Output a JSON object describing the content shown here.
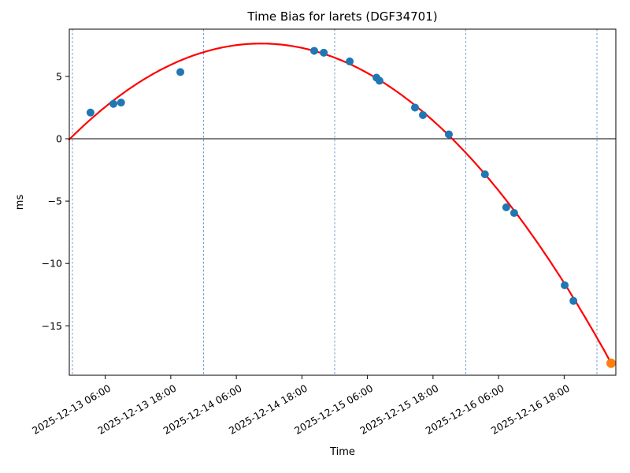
{
  "chart_data": {
    "type": "scatter",
    "title": "Time Bias for larets (DGF34701)",
    "xlabel": "Time",
    "ylabel": "ms",
    "x_unit": "hours since 2025-12-13 00:00",
    "xlim_hours": [
      -0.58,
      99.46
    ],
    "ylim": [
      -18.96,
      8.79
    ],
    "grid": "vertical dashed lines at each midnight",
    "x_tick_hours": [
      6,
      18,
      30,
      42,
      54,
      66,
      78,
      90
    ],
    "x_tick_labels": [
      "2025-12-13 06:00",
      "2025-12-13 18:00",
      "2025-12-14 06:00",
      "2025-12-14 18:00",
      "2025-12-15 06:00",
      "2025-12-15 18:00",
      "2025-12-16 06:00",
      "2025-12-16 18:00"
    ],
    "day_gridlines_hours": [
      0,
      24,
      48,
      72,
      96
    ],
    "day_gridline_dates": [
      "2025-12-13 00:00",
      "2025-12-14 00:00",
      "2025-12-15 00:00",
      "2025-12-16 00:00",
      "2025-12-17 00:00"
    ],
    "y_ticks": [
      5,
      0,
      -5,
      -10,
      -15
    ],
    "y_tick_labels": [
      "5",
      "0",
      "−5",
      "−10",
      "−15"
    ],
    "series": [
      {
        "name": "observed-time-bias",
        "color": "#1f77b4",
        "marker_radius": 5,
        "points": [
          {
            "t": 3.3,
            "ms": 2.1
          },
          {
            "t": 7.5,
            "ms": 2.8
          },
          {
            "t": 8.9,
            "ms": 2.9
          },
          {
            "t": 19.75,
            "ms": 5.35
          },
          {
            "t": 44.25,
            "ms": 7.05
          },
          {
            "t": 46.0,
            "ms": 6.9
          },
          {
            "t": 50.75,
            "ms": 6.2
          },
          {
            "t": 55.65,
            "ms": 4.9
          },
          {
            "t": 56.2,
            "ms": 4.65
          },
          {
            "t": 62.7,
            "ms": 2.5
          },
          {
            "t": 64.15,
            "ms": 1.9
          },
          {
            "t": 68.9,
            "ms": 0.35
          },
          {
            "t": 75.5,
            "ms": -2.85
          },
          {
            "t": 79.4,
            "ms": -5.5
          },
          {
            "t": 80.85,
            "ms": -5.95
          },
          {
            "t": 90.1,
            "ms": -11.75
          },
          {
            "t": 91.7,
            "ms": -13.0
          }
        ]
      },
      {
        "name": "latest-observation",
        "color": "#ff7f0e",
        "marker_radius": 6,
        "points": [
          {
            "t": 98.6,
            "ms": -18.0
          }
        ]
      }
    ],
    "fit_curve": {
      "name": "quadratic-fit",
      "color": "#ff0000",
      "width": 2.2,
      "c0": 0.192,
      "c1": 0.431,
      "c2": -0.006241,
      "t_start": -0.58,
      "t_end": 98.6,
      "peak": {
        "t": 34.5,
        "ms": 7.63
      }
    },
    "zero_line": {
      "value": 0,
      "color": "#000000"
    },
    "colors": {
      "background": "#ffffff",
      "grid": "#6b9bd2",
      "axis": "#000000",
      "text": "#000000"
    },
    "legend": "none"
  }
}
